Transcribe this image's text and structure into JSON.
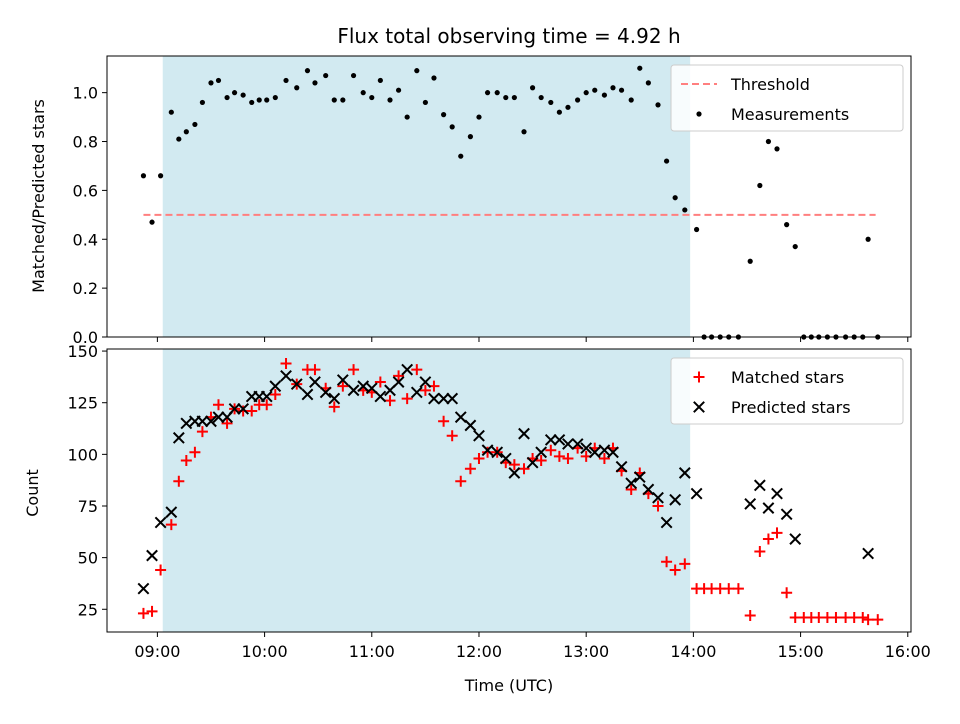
{
  "chart_data": {
    "type": "scatter",
    "title": "Flux total observing time = 4.92 h",
    "xlabel": "Time (UTC)",
    "x_ticks": [
      "09:00",
      "10:00",
      "11:00",
      "12:00",
      "13:00",
      "14:00",
      "15:00",
      "16:00"
    ],
    "xlim_hours": [
      8.53,
      16.03
    ],
    "shaded_interval_hours": [
      9.05,
      13.97
    ],
    "shade_color": "#add8e6",
    "panels": [
      {
        "ylabel": "Matched/Predicted stars",
        "ylim": [
          0,
          1.15
        ],
        "y_ticks": [
          "0.0",
          "0.2",
          "0.4",
          "0.6",
          "0.8",
          "1.0"
        ],
        "legend": [
          "Threshold",
          "Measurements"
        ],
        "threshold": {
          "name": "Threshold",
          "value": 0.5,
          "x_range_hours": [
            8.87,
            15.7
          ],
          "color": "#ff7f7f"
        },
        "series": [
          {
            "name": "Measurements",
            "marker": "dot",
            "color": "#000000",
            "points": [
              [
                8.87,
                0.66
              ],
              [
                8.95,
                0.47
              ],
              [
                9.03,
                0.66
              ],
              [
                9.13,
                0.92
              ],
              [
                9.2,
                0.81
              ],
              [
                9.27,
                0.84
              ],
              [
                9.35,
                0.87
              ],
              [
                9.42,
                0.96
              ],
              [
                9.5,
                1.04
              ],
              [
                9.57,
                1.05
              ],
              [
                9.65,
                0.98
              ],
              [
                9.72,
                1.0
              ],
              [
                9.8,
                0.99
              ],
              [
                9.88,
                0.96
              ],
              [
                9.95,
                0.97
              ],
              [
                10.02,
                0.97
              ],
              [
                10.1,
                0.98
              ],
              [
                10.2,
                1.05
              ],
              [
                10.3,
                1.02
              ],
              [
                10.4,
                1.09
              ],
              [
                10.47,
                1.04
              ],
              [
                10.57,
                1.07
              ],
              [
                10.65,
                0.97
              ],
              [
                10.73,
                0.97
              ],
              [
                10.83,
                1.07
              ],
              [
                10.92,
                1.0
              ],
              [
                11.0,
                0.98
              ],
              [
                11.08,
                1.05
              ],
              [
                11.17,
                0.97
              ],
              [
                11.25,
                1.01
              ],
              [
                11.33,
                0.9
              ],
              [
                11.42,
                1.09
              ],
              [
                11.5,
                0.96
              ],
              [
                11.58,
                1.06
              ],
              [
                11.67,
                0.91
              ],
              [
                11.75,
                0.86
              ],
              [
                11.83,
                0.74
              ],
              [
                11.92,
                0.82
              ],
              [
                12.0,
                0.9
              ],
              [
                12.08,
                1.0
              ],
              [
                12.17,
                1.0
              ],
              [
                12.25,
                0.98
              ],
              [
                12.33,
                0.98
              ],
              [
                12.42,
                0.84
              ],
              [
                12.5,
                1.02
              ],
              [
                12.58,
                0.98
              ],
              [
                12.67,
                0.96
              ],
              [
                12.75,
                0.92
              ],
              [
                12.83,
                0.94
              ],
              [
                12.92,
                0.97
              ],
              [
                13.0,
                1.0
              ],
              [
                13.08,
                1.01
              ],
              [
                13.17,
                0.99
              ],
              [
                13.25,
                1.02
              ],
              [
                13.33,
                1.01
              ],
              [
                13.42,
                0.97
              ],
              [
                13.5,
                1.1
              ],
              [
                13.58,
                1.04
              ],
              [
                13.67,
                0.95
              ],
              [
                13.75,
                0.72
              ],
              [
                13.83,
                0.57
              ],
              [
                13.92,
                0.52
              ],
              [
                14.03,
                0.44
              ],
              [
                14.1,
                0.0
              ],
              [
                14.17,
                0.0
              ],
              [
                14.25,
                0.0
              ],
              [
                14.33,
                0.0
              ],
              [
                14.42,
                0.0
              ],
              [
                14.53,
                0.31
              ],
              [
                14.62,
                0.62
              ],
              [
                14.7,
                0.8
              ],
              [
                14.78,
                0.77
              ],
              [
                14.87,
                0.46
              ],
              [
                14.95,
                0.37
              ],
              [
                15.03,
                0.0
              ],
              [
                15.1,
                0.0
              ],
              [
                15.17,
                0.0
              ],
              [
                15.25,
                0.0
              ],
              [
                15.33,
                0.0
              ],
              [
                15.42,
                0.0
              ],
              [
                15.5,
                0.0
              ],
              [
                15.58,
                0.0
              ],
              [
                15.63,
                0.4
              ],
              [
                15.72,
                0.0
              ]
            ]
          }
        ]
      },
      {
        "ylabel": "Count",
        "ylim": [
          14,
          151
        ],
        "y_ticks": [
          "25",
          "50",
          "75",
          "100",
          "125",
          "150"
        ],
        "legend": [
          "Matched stars",
          "Predicted stars"
        ],
        "series": [
          {
            "name": "Matched stars",
            "marker": "plus",
            "color": "#ff0000",
            "points": [
              [
                8.87,
                23
              ],
              [
                8.95,
                24
              ],
              [
                9.03,
                44
              ],
              [
                9.13,
                66
              ],
              [
                9.2,
                87
              ],
              [
                9.27,
                97
              ],
              [
                9.35,
                101
              ],
              [
                9.42,
                111
              ],
              [
                9.5,
                118
              ],
              [
                9.57,
                124
              ],
              [
                9.65,
                115
              ],
              [
                9.72,
                122
              ],
              [
                9.8,
                121
              ],
              [
                9.88,
                121
              ],
              [
                9.95,
                124
              ],
              [
                10.02,
                124
              ],
              [
                10.1,
                129
              ],
              [
                10.2,
                144
              ],
              [
                10.3,
                134
              ],
              [
                10.4,
                141
              ],
              [
                10.47,
                141
              ],
              [
                10.57,
                132
              ],
              [
                10.65,
                123
              ],
              [
                10.73,
                133
              ],
              [
                10.83,
                141
              ],
              [
                10.92,
                131
              ],
              [
                11.0,
                130
              ],
              [
                11.08,
                135
              ],
              [
                11.17,
                126
              ],
              [
                11.25,
                138
              ],
              [
                11.33,
                127
              ],
              [
                11.42,
                141
              ],
              [
                11.5,
                131
              ],
              [
                11.58,
                133
              ],
              [
                11.67,
                116
              ],
              [
                11.75,
                109
              ],
              [
                11.83,
                87
              ],
              [
                11.92,
                93
              ],
              [
                12.0,
                98
              ],
              [
                12.08,
                101
              ],
              [
                12.17,
                101
              ],
              [
                12.25,
                96
              ],
              [
                12.33,
                95
              ],
              [
                12.42,
                93
              ],
              [
                12.5,
                98
              ],
              [
                12.58,
                97
              ],
              [
                12.67,
                102
              ],
              [
                12.75,
                99
              ],
              [
                12.83,
                98
              ],
              [
                12.92,
                103
              ],
              [
                13.0,
                99
              ],
              [
                13.08,
                103
              ],
              [
                13.17,
                98
              ],
              [
                13.25,
                103
              ],
              [
                13.33,
                92
              ],
              [
                13.42,
                83
              ],
              [
                13.5,
                91
              ],
              [
                13.58,
                81
              ],
              [
                13.67,
                75
              ],
              [
                13.75,
                48
              ],
              [
                13.83,
                44
              ],
              [
                13.92,
                47
              ],
              [
                14.03,
                35
              ],
              [
                14.1,
                35
              ],
              [
                14.17,
                35
              ],
              [
                14.25,
                35
              ],
              [
                14.33,
                35
              ],
              [
                14.42,
                35
              ],
              [
                14.53,
                22
              ],
              [
                14.62,
                53
              ],
              [
                14.7,
                59
              ],
              [
                14.78,
                62
              ],
              [
                14.87,
                33
              ],
              [
                14.95,
                21
              ],
              [
                15.03,
                21
              ],
              [
                15.1,
                21
              ],
              [
                15.17,
                21
              ],
              [
                15.25,
                21
              ],
              [
                15.33,
                21
              ],
              [
                15.42,
                21
              ],
              [
                15.5,
                21
              ],
              [
                15.58,
                21
              ],
              [
                15.63,
                20
              ],
              [
                15.72,
                20
              ]
            ]
          },
          {
            "name": "Predicted stars",
            "marker": "x",
            "color": "#000000",
            "points": [
              [
                8.87,
                35
              ],
              [
                8.95,
                51
              ],
              [
                9.03,
                67
              ],
              [
                9.13,
                72
              ],
              [
                9.2,
                108
              ],
              [
                9.27,
                115
              ],
              [
                9.35,
                116
              ],
              [
                9.42,
                116
              ],
              [
                9.5,
                116
              ],
              [
                9.57,
                118
              ],
              [
                9.65,
                118
              ],
              [
                9.72,
                122
              ],
              [
                9.8,
                122
              ],
              [
                9.88,
                128
              ],
              [
                9.95,
                128
              ],
              [
                10.02,
                128
              ],
              [
                10.1,
                133
              ],
              [
                10.2,
                138
              ],
              [
                10.3,
                134
              ],
              [
                10.4,
                129
              ],
              [
                10.47,
                135
              ],
              [
                10.57,
                130
              ],
              [
                10.65,
                127
              ],
              [
                10.73,
                136
              ],
              [
                10.83,
                131
              ],
              [
                10.92,
                133
              ],
              [
                11.0,
                132
              ],
              [
                11.08,
                128
              ],
              [
                11.17,
                131
              ],
              [
                11.25,
                135
              ],
              [
                11.33,
                141
              ],
              [
                11.42,
                130
              ],
              [
                11.5,
                135
              ],
              [
                11.58,
                127
              ],
              [
                11.67,
                127
              ],
              [
                11.75,
                127
              ],
              [
                11.83,
                118
              ],
              [
                11.92,
                114
              ],
              [
                12.0,
                109
              ],
              [
                12.08,
                102
              ],
              [
                12.17,
                101
              ],
              [
                12.25,
                98
              ],
              [
                12.33,
                91
              ],
              [
                12.42,
                110
              ],
              [
                12.5,
                96
              ],
              [
                12.58,
                101
              ],
              [
                12.67,
                107
              ],
              [
                12.75,
                107
              ],
              [
                12.83,
                105
              ],
              [
                12.92,
                105
              ],
              [
                13.0,
                103
              ],
              [
                13.08,
                101
              ],
              [
                13.17,
                102
              ],
              [
                13.25,
                101
              ],
              [
                13.33,
                94
              ],
              [
                13.42,
                86
              ],
              [
                13.5,
                89
              ],
              [
                13.58,
                83
              ],
              [
                13.67,
                79
              ],
              [
                13.75,
                67
              ],
              [
                13.83,
                78
              ],
              [
                13.92,
                91
              ],
              [
                14.03,
                81
              ],
              [
                14.53,
                76
              ],
              [
                14.62,
                85
              ],
              [
                14.7,
                74
              ],
              [
                14.78,
                81
              ],
              [
                14.87,
                71
              ],
              [
                14.95,
                59
              ],
              [
                15.63,
                52
              ]
            ]
          }
        ]
      }
    ]
  }
}
